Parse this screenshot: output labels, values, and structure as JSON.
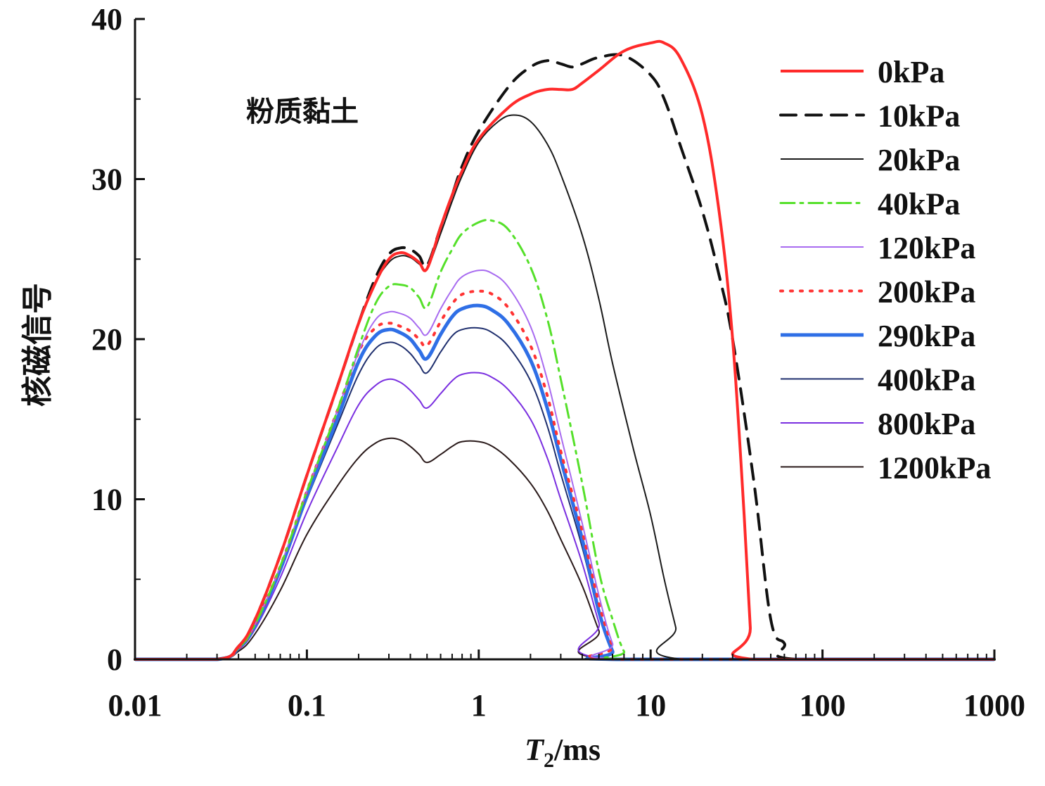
{
  "chart_data": {
    "type": "line",
    "annotation": "粉质黏土",
    "xlabel_italic": "T",
    "xlabel_sub": "2",
    "xlabel_rest": "/ms",
    "ylabel": "核磁信号",
    "xscale": "log",
    "xlim": [
      0.01,
      1000
    ],
    "ylim": [
      0,
      40
    ],
    "xticks": [
      0.01,
      0.1,
      1,
      10,
      100,
      1000
    ],
    "xtick_labels": [
      "0.01",
      "0.1",
      "1",
      "10",
      "100",
      "1000"
    ],
    "yticks": [
      0,
      10,
      20,
      30,
      40
    ],
    "ytick_labels": [
      "0",
      "10",
      "20",
      "30",
      "40"
    ],
    "legend_position": "top-right",
    "series": [
      {
        "name": "0kPa",
        "color": "#ff2a2a",
        "dash": "solid",
        "width": 4,
        "x": [
          0.01,
          0.03,
          0.04,
          0.05,
          0.07,
          0.1,
          0.15,
          0.2,
          0.25,
          0.3,
          0.35,
          0.4,
          0.45,
          0.5,
          0.6,
          0.7,
          0.8,
          1,
          1.5,
          2,
          2.5,
          3,
          3.5,
          4,
          5,
          7,
          10,
          12,
          15,
          20,
          25,
          30,
          35,
          38,
          39,
          1000
        ],
        "y": [
          0,
          0,
          0.8,
          2.5,
          6.5,
          11.5,
          17,
          21,
          23.5,
          25,
          25.4,
          25.2,
          24.8,
          24.4,
          27,
          29,
          30.5,
          32.5,
          34.5,
          35.3,
          35.6,
          35.6,
          35.6,
          36,
          36.8,
          38,
          38.5,
          38.5,
          37.5,
          34,
          28,
          20,
          9,
          2,
          0,
          0
        ]
      },
      {
        "name": "10kPa",
        "color": "#111111",
        "dash": "22,14",
        "width": 4,
        "x": [
          0.01,
          0.03,
          0.04,
          0.05,
          0.07,
          0.1,
          0.15,
          0.2,
          0.25,
          0.3,
          0.35,
          0.4,
          0.45,
          0.5,
          0.6,
          0.7,
          0.8,
          1,
          1.5,
          2,
          2.5,
          3,
          3.5,
          4,
          5,
          7,
          10,
          12,
          15,
          20,
          25,
          30,
          40,
          50,
          60,
          70,
          1000
        ],
        "y": [
          0,
          0,
          0.8,
          2.5,
          6.5,
          11.5,
          17,
          21,
          23.8,
          25.3,
          25.7,
          25.6,
          25.2,
          24.6,
          27,
          29,
          30.8,
          33,
          35.8,
          37,
          37.4,
          37.2,
          37,
          37.2,
          37.6,
          37.7,
          36.5,
          35,
          32,
          28,
          24,
          20,
          11,
          2.5,
          1,
          0,
          0
        ]
      },
      {
        "name": "20kPa",
        "color": "#1a1a1a",
        "dash": "solid",
        "width": 2,
        "x": [
          0.01,
          0.03,
          0.04,
          0.05,
          0.07,
          0.1,
          0.15,
          0.2,
          0.25,
          0.3,
          0.35,
          0.4,
          0.45,
          0.5,
          0.6,
          0.7,
          0.8,
          1,
          1.3,
          1.6,
          2,
          2.5,
          3,
          4,
          5,
          6,
          8,
          10,
          12,
          14,
          15.5,
          1000
        ],
        "y": [
          0,
          0,
          0.8,
          2.5,
          6.5,
          11.5,
          17,
          21,
          23.5,
          24.8,
          25.2,
          25.1,
          24.7,
          24.4,
          26.6,
          28.6,
          30.2,
          32.3,
          33.6,
          34,
          33.6,
          32.2,
          30.3,
          26.5,
          22.5,
          18.5,
          13,
          9,
          5,
          2,
          0,
          0
        ]
      },
      {
        "name": "40kPa",
        "color": "#55e02a",
        "dash": "20,8,4,8",
        "width": 3,
        "x": [
          0.01,
          0.03,
          0.04,
          0.05,
          0.07,
          0.1,
          0.15,
          0.2,
          0.25,
          0.3,
          0.35,
          0.4,
          0.45,
          0.5,
          0.6,
          0.7,
          0.8,
          1,
          1.2,
          1.5,
          2,
          2.5,
          3,
          4,
          5,
          6,
          7,
          8,
          1000
        ],
        "y": [
          0,
          0,
          0.7,
          2.2,
          5.8,
          10.5,
          15.5,
          19.5,
          22.2,
          23.3,
          23.4,
          23.2,
          22.6,
          22,
          24.2,
          25.6,
          26.6,
          27.3,
          27.4,
          26.8,
          24.5,
          21.3,
          17.5,
          11,
          5.5,
          2.5,
          0.5,
          0,
          0
        ]
      },
      {
        "name": "120kPa",
        "color": "#a86bf0",
        "dash": "solid",
        "width": 2,
        "x": [
          0.01,
          0.03,
          0.04,
          0.05,
          0.07,
          0.1,
          0.15,
          0.2,
          0.25,
          0.3,
          0.35,
          0.4,
          0.45,
          0.5,
          0.6,
          0.7,
          0.8,
          1,
          1.2,
          1.5,
          2,
          2.5,
          3,
          4,
          5,
          6,
          7,
          1000
        ],
        "y": [
          0,
          0,
          0.7,
          2.2,
          5.8,
          10.5,
          15.5,
          19.2,
          21.2,
          21.7,
          21.6,
          21.3,
          20.7,
          20.3,
          21.9,
          23.1,
          23.9,
          24.3,
          24.1,
          23.2,
          20.8,
          17.5,
          14,
          8.5,
          4,
          1,
          0,
          0
        ]
      },
      {
        "name": "200kPa",
        "color": "#ff3333",
        "dash": "3,11",
        "width": 4,
        "x": [
          0.01,
          0.03,
          0.04,
          0.05,
          0.07,
          0.1,
          0.15,
          0.2,
          0.25,
          0.3,
          0.35,
          0.4,
          0.45,
          0.5,
          0.6,
          0.7,
          0.8,
          1,
          1.2,
          1.5,
          2,
          2.5,
          3,
          4,
          5,
          6,
          6.5,
          1000
        ],
        "y": [
          0,
          0,
          0.7,
          2.2,
          5.8,
          10.5,
          15.5,
          19.2,
          20.7,
          21,
          20.8,
          20.5,
          20,
          19.6,
          21.1,
          22.2,
          22.8,
          23,
          22.8,
          21.9,
          19.6,
          16.5,
          13,
          8,
          3.5,
          0.8,
          0,
          0
        ]
      },
      {
        "name": "290kPa",
        "color": "#2f6fe6",
        "dash": "solid",
        "width": 5,
        "x": [
          0.01,
          0.03,
          0.04,
          0.05,
          0.07,
          0.1,
          0.15,
          0.2,
          0.25,
          0.3,
          0.35,
          0.4,
          0.45,
          0.5,
          0.6,
          0.7,
          0.8,
          1,
          1.2,
          1.5,
          2,
          2.5,
          3,
          4,
          5,
          6,
          6.5,
          1000
        ],
        "y": [
          0,
          0,
          0.7,
          2.1,
          5.6,
          10.2,
          15,
          18.6,
          20.2,
          20.6,
          20.4,
          20,
          19.3,
          18.8,
          20.3,
          21.4,
          21.9,
          22.1,
          21.8,
          20.9,
          18.7,
          15.7,
          12.5,
          7.5,
          3,
          0.5,
          0,
          0
        ]
      },
      {
        "name": "400kPa",
        "color": "#1f2f6e",
        "dash": "solid",
        "width": 2,
        "x": [
          0.01,
          0.03,
          0.04,
          0.05,
          0.07,
          0.1,
          0.15,
          0.2,
          0.25,
          0.3,
          0.35,
          0.4,
          0.45,
          0.5,
          0.6,
          0.7,
          0.8,
          1,
          1.2,
          1.5,
          2,
          2.5,
          3,
          4,
          5,
          6,
          6.3,
          1000
        ],
        "y": [
          0,
          0,
          0.7,
          2.1,
          5.6,
          10,
          14.6,
          17.8,
          19.4,
          19.8,
          19.6,
          19.1,
          18.4,
          17.9,
          19.2,
          20.2,
          20.6,
          20.7,
          20.4,
          19.5,
          17.4,
          14.6,
          11.6,
          7,
          2.8,
          0.4,
          0,
          0
        ]
      },
      {
        "name": "800kPa",
        "color": "#7a2fe0",
        "dash": "solid",
        "width": 2,
        "x": [
          0.01,
          0.03,
          0.04,
          0.05,
          0.07,
          0.1,
          0.15,
          0.2,
          0.25,
          0.3,
          0.35,
          0.4,
          0.45,
          0.5,
          0.6,
          0.7,
          0.8,
          1,
          1.2,
          1.5,
          2,
          2.5,
          3,
          4,
          5,
          6,
          1000
        ],
        "y": [
          0,
          0,
          0.6,
          1.9,
          5.1,
          9.2,
          13.2,
          15.9,
          17.1,
          17.5,
          17.3,
          16.8,
          16.2,
          15.7,
          16.6,
          17.4,
          17.8,
          17.9,
          17.6,
          16.8,
          15,
          12.6,
          10,
          6,
          2.3,
          0,
          0
        ]
      },
      {
        "name": "1200kPa",
        "color": "#2a1a1a",
        "dash": "solid",
        "width": 2,
        "x": [
          0.01,
          0.03,
          0.04,
          0.05,
          0.07,
          0.1,
          0.15,
          0.2,
          0.25,
          0.3,
          0.35,
          0.4,
          0.45,
          0.5,
          0.6,
          0.7,
          0.8,
          1,
          1.2,
          1.5,
          2,
          2.5,
          3,
          4,
          5,
          6,
          1000
        ],
        "y": [
          0,
          0,
          0.5,
          1.6,
          4.3,
          7.8,
          10.8,
          12.6,
          13.5,
          13.8,
          13.7,
          13.3,
          12.8,
          12.3,
          12.8,
          13.3,
          13.6,
          13.6,
          13.3,
          12.5,
          11,
          9.3,
          7.5,
          4.6,
          1.8,
          0,
          0
        ]
      }
    ]
  }
}
